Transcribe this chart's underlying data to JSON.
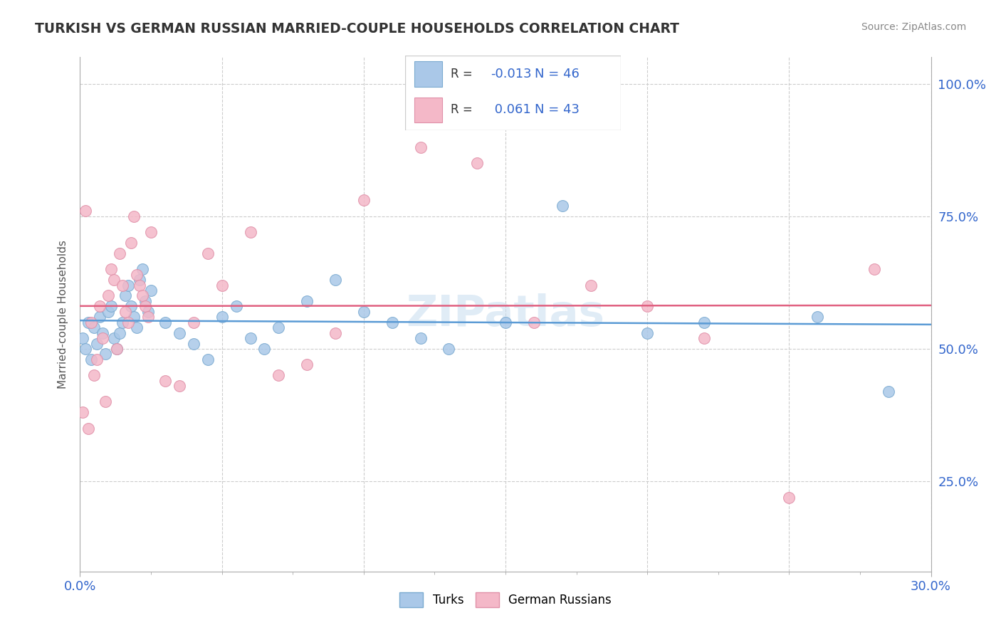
{
  "title": "TURKISH VS GERMAN RUSSIAN MARRIED-COUPLE HOUSEHOLDS CORRELATION CHART",
  "source": "Source: ZipAtlas.com",
  "ylabel": "Married-couple Households",
  "ytick_labels": [
    "100.0%",
    "75.0%",
    "50.0%",
    "25.0%"
  ],
  "ytick_values": [
    1.0,
    0.75,
    0.5,
    0.25
  ],
  "xtick_labels": [
    "0.0%",
    "30.0%"
  ],
  "xmin": 0.0,
  "xmax": 0.3,
  "ymin": 0.08,
  "ymax": 1.05,
  "series1_name": "Turks",
  "series1_R": -0.013,
  "series1_N": 46,
  "series1_face_color": "#aac8e8",
  "series1_edge_color": "#7aaad0",
  "series1_line_color": "#5b9bd5",
  "series2_name": "German Russians",
  "series2_R": 0.061,
  "series2_N": 43,
  "series2_face_color": "#f4b8c8",
  "series2_edge_color": "#e090a8",
  "series2_line_color": "#e06080",
  "grid_color": "#cccccc",
  "axis_color": "#aaaaaa",
  "label_color": "#3366cc",
  "title_color": "#333333",
  "watermark_color": "#c8ddf0",
  "background_color": "#ffffff",
  "turks_x": [
    0.001,
    0.002,
    0.003,
    0.004,
    0.005,
    0.006,
    0.007,
    0.008,
    0.009,
    0.01,
    0.011,
    0.012,
    0.013,
    0.014,
    0.015,
    0.016,
    0.017,
    0.018,
    0.019,
    0.02,
    0.021,
    0.022,
    0.023,
    0.024,
    0.025,
    0.03,
    0.035,
    0.04,
    0.045,
    0.05,
    0.055,
    0.06,
    0.065,
    0.07,
    0.08,
    0.09,
    0.1,
    0.11,
    0.12,
    0.13,
    0.15,
    0.17,
    0.2,
    0.22,
    0.26,
    0.285
  ],
  "turks_y": [
    0.52,
    0.5,
    0.55,
    0.48,
    0.54,
    0.51,
    0.56,
    0.53,
    0.49,
    0.57,
    0.58,
    0.52,
    0.5,
    0.53,
    0.55,
    0.6,
    0.62,
    0.58,
    0.56,
    0.54,
    0.63,
    0.65,
    0.59,
    0.57,
    0.61,
    0.55,
    0.53,
    0.51,
    0.48,
    0.56,
    0.58,
    0.52,
    0.5,
    0.54,
    0.59,
    0.63,
    0.57,
    0.55,
    0.52,
    0.5,
    0.55,
    0.77,
    0.53,
    0.55,
    0.56,
    0.42
  ],
  "german_x": [
    0.001,
    0.002,
    0.003,
    0.004,
    0.005,
    0.006,
    0.007,
    0.008,
    0.009,
    0.01,
    0.011,
    0.012,
    0.013,
    0.014,
    0.015,
    0.016,
    0.017,
    0.018,
    0.019,
    0.02,
    0.021,
    0.022,
    0.023,
    0.024,
    0.025,
    0.03,
    0.035,
    0.04,
    0.045,
    0.05,
    0.06,
    0.07,
    0.08,
    0.09,
    0.1,
    0.12,
    0.14,
    0.16,
    0.18,
    0.2,
    0.22,
    0.25,
    0.28
  ],
  "german_y": [
    0.38,
    0.76,
    0.35,
    0.55,
    0.45,
    0.48,
    0.58,
    0.52,
    0.4,
    0.6,
    0.65,
    0.63,
    0.5,
    0.68,
    0.62,
    0.57,
    0.55,
    0.7,
    0.75,
    0.64,
    0.62,
    0.6,
    0.58,
    0.56,
    0.72,
    0.44,
    0.43,
    0.55,
    0.68,
    0.62,
    0.72,
    0.45,
    0.47,
    0.53,
    0.78,
    0.88,
    0.85,
    0.55,
    0.62,
    0.58,
    0.52,
    0.22,
    0.65
  ]
}
